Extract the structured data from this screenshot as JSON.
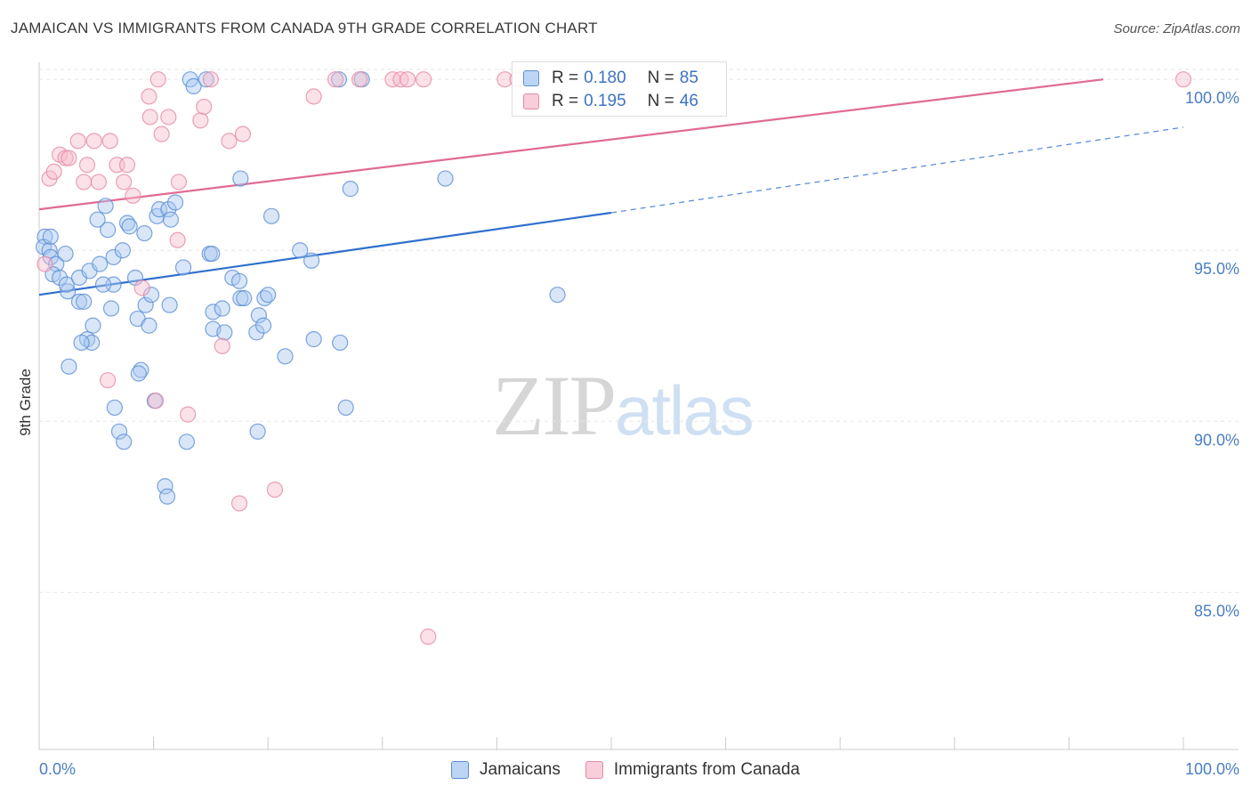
{
  "title": "JAMAICAN VS IMMIGRANTS FROM CANADA 9TH GRADE CORRELATION CHART",
  "source": "Source: ZipAtlas.com",
  "watermark": {
    "zip": "ZIP",
    "atlas": "atlas"
  },
  "legend_top": [
    {
      "r_label": "R = ",
      "r_value": "0.180",
      "n_label": "N = ",
      "n_value": "85"
    },
    {
      "r_label": "R = ",
      "r_value": "0.195",
      "n_label": "N = ",
      "n_value": "46"
    }
  ],
  "legend_bottom": [
    "Jamaicans",
    "Immigrants from Canada"
  ],
  "colors": {
    "blue_fill": "#a8c8f0",
    "blue_stroke": "#5b8fd6",
    "blue_line": "#2f6fcc",
    "pink_fill": "#f7bccd",
    "pink_stroke": "#e58aa6",
    "pink_line": "#e06b93",
    "grid": "#e6e6e6",
    "tick_text": "#4a7fc1"
  },
  "chart_data": {
    "type": "scatter",
    "title": "JAMAICAN VS IMMIGRANTS FROM CANADA 9TH GRADE CORRELATION CHART",
    "xlabel": "",
    "ylabel": "9th Grade",
    "xlim": [
      0,
      100
    ],
    "ylim": [
      80.4,
      100.5
    ],
    "x_tick_labels": [
      "0.0%",
      "100.0%"
    ],
    "y_ticks": [
      {
        "value": 85,
        "label": "85.0%"
      },
      {
        "value": 90,
        "label": "90.0%"
      },
      {
        "value": 95,
        "label": "95.0%"
      },
      {
        "value": 100,
        "label": "100.0%"
      }
    ],
    "grid": true,
    "legend_position": "bottom",
    "series": [
      {
        "name": "Jamaicans",
        "r": 0.18,
        "n": 85,
        "trend": {
          "x0": 0,
          "y0": 93.7,
          "x1": 50,
          "y1": 96.1,
          "dash_to_x": 100,
          "dash_to_y": 98.6
        },
        "points": [
          [
            0.5,
            95.4
          ],
          [
            0.4,
            95.1
          ],
          [
            0.9,
            95.0
          ],
          [
            1.0,
            95.4
          ],
          [
            1.0,
            94.8
          ],
          [
            1.5,
            94.6
          ],
          [
            1.2,
            94.3
          ],
          [
            1.8,
            94.2
          ],
          [
            2.3,
            94.9
          ],
          [
            2.5,
            93.8
          ],
          [
            2.4,
            94.0
          ],
          [
            3.5,
            94.2
          ],
          [
            3.5,
            93.5
          ],
          [
            3.9,
            93.5
          ],
          [
            4.4,
            94.4
          ],
          [
            5.3,
            94.6
          ],
          [
            4.2,
            92.4
          ],
          [
            4.6,
            92.3
          ],
          [
            3.7,
            92.3
          ],
          [
            4.7,
            92.8
          ],
          [
            2.6,
            91.6
          ],
          [
            6.0,
            95.6
          ],
          [
            5.1,
            95.9
          ],
          [
            5.8,
            96.3
          ],
          [
            6.5,
            94.8
          ],
          [
            6.5,
            94.0
          ],
          [
            5.6,
            94.0
          ],
          [
            6.3,
            93.3
          ],
          [
            7.3,
            95.0
          ],
          [
            7.7,
            95.8
          ],
          [
            7.9,
            95.7
          ],
          [
            8.4,
            94.2
          ],
          [
            8.6,
            93.0
          ],
          [
            9.2,
            95.5
          ],
          [
            9.3,
            93.4
          ],
          [
            9.6,
            92.8
          ],
          [
            8.9,
            91.5
          ],
          [
            8.7,
            91.4
          ],
          [
            9.8,
            93.7
          ],
          [
            10.3,
            96.0
          ],
          [
            10.5,
            96.2
          ],
          [
            11.3,
            96.2
          ],
          [
            11.5,
            95.9
          ],
          [
            11.9,
            96.4
          ],
          [
            11.4,
            93.4
          ],
          [
            12.6,
            94.5
          ],
          [
            13.2,
            100.0
          ],
          [
            13.5,
            99.8
          ],
          [
            14.6,
            100.0
          ],
          [
            14.9,
            94.9
          ],
          [
            15.1,
            94.9
          ],
          [
            15.2,
            93.2
          ],
          [
            15.2,
            92.7
          ],
          [
            16.2,
            92.6
          ],
          [
            16.0,
            93.3
          ],
          [
            16.9,
            94.2
          ],
          [
            17.6,
            97.1
          ],
          [
            17.5,
            94.1
          ],
          [
            17.6,
            93.6
          ],
          [
            17.9,
            93.6
          ],
          [
            19.2,
            93.1
          ],
          [
            19.0,
            92.6
          ],
          [
            19.6,
            92.8
          ],
          [
            19.7,
            93.6
          ],
          [
            20.0,
            93.7
          ],
          [
            20.3,
            96.0
          ],
          [
            21.5,
            91.9
          ],
          [
            22.8,
            95.0
          ],
          [
            23.8,
            94.7
          ],
          [
            24.0,
            92.4
          ],
          [
            26.3,
            92.3
          ],
          [
            26.8,
            90.4
          ],
          [
            27.2,
            96.8
          ],
          [
            11.0,
            88.1
          ],
          [
            11.2,
            87.8
          ],
          [
            10.1,
            90.6
          ],
          [
            12.9,
            89.4
          ],
          [
            19.1,
            89.7
          ],
          [
            7.0,
            89.7
          ],
          [
            7.4,
            89.4
          ],
          [
            6.6,
            90.4
          ],
          [
            26.2,
            100.0
          ],
          [
            28.2,
            100.0
          ],
          [
            35.5,
            97.1
          ],
          [
            45.3,
            93.7
          ]
        ]
      },
      {
        "name": "Immigrants from Canada",
        "r": 0.195,
        "n": 46,
        "trend": {
          "x0": 0,
          "y0": 96.2,
          "x1": 93,
          "y1": 100.0
        },
        "points": [
          [
            0.5,
            94.6
          ],
          [
            0.9,
            97.1
          ],
          [
            1.3,
            97.3
          ],
          [
            1.8,
            97.8
          ],
          [
            2.3,
            97.7
          ],
          [
            2.6,
            97.7
          ],
          [
            3.4,
            98.2
          ],
          [
            3.9,
            97.0
          ],
          [
            4.2,
            97.5
          ],
          [
            4.8,
            98.2
          ],
          [
            5.2,
            97.0
          ],
          [
            6.2,
            98.2
          ],
          [
            6.8,
            97.5
          ],
          [
            7.4,
            97.0
          ],
          [
            7.7,
            97.5
          ],
          [
            8.2,
            96.6
          ],
          [
            9.0,
            93.9
          ],
          [
            9.6,
            99.5
          ],
          [
            9.7,
            98.9
          ],
          [
            10.4,
            100.0
          ],
          [
            10.7,
            98.4
          ],
          [
            11.3,
            98.9
          ],
          [
            12.1,
            95.3
          ],
          [
            12.2,
            97.0
          ],
          [
            14.1,
            98.8
          ],
          [
            14.4,
            99.2
          ],
          [
            15.0,
            100.0
          ],
          [
            16.0,
            92.2
          ],
          [
            16.6,
            98.2
          ],
          [
            17.5,
            87.6
          ],
          [
            17.8,
            98.4
          ],
          [
            20.6,
            88.0
          ],
          [
            24.0,
            99.5
          ],
          [
            25.9,
            100.0
          ],
          [
            28.0,
            100.0
          ],
          [
            30.9,
            100.0
          ],
          [
            31.6,
            100.0
          ],
          [
            32.2,
            100.0
          ],
          [
            33.6,
            100.0
          ],
          [
            40.7,
            100.0
          ],
          [
            41.8,
            100.0
          ],
          [
            100.0,
            100.0
          ],
          [
            6.0,
            91.2
          ],
          [
            10.2,
            90.6
          ],
          [
            13.0,
            90.2
          ],
          [
            34.0,
            83.7
          ]
        ]
      }
    ]
  }
}
